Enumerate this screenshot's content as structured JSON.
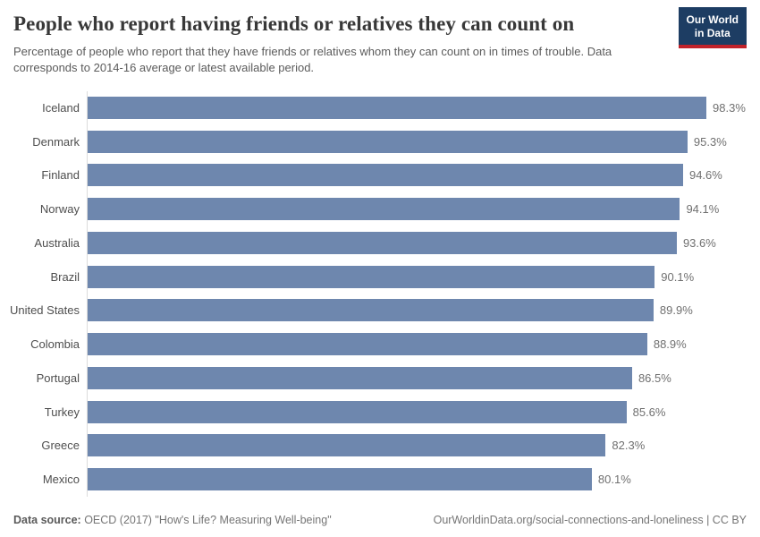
{
  "header": {
    "title": "People who report having friends or relatives they can count on",
    "subtitle": "Percentage of people who report that they have friends or relatives whom they can count on in times of trouble. Data corresponds to 2014-16 average or latest available period.",
    "logo": {
      "line1": "Our World",
      "line2": "in Data"
    }
  },
  "chart_data": {
    "type": "bar",
    "orientation": "horizontal",
    "categories": [
      "Iceland",
      "Denmark",
      "Finland",
      "Norway",
      "Australia",
      "Brazil",
      "United States",
      "Colombia",
      "Portugal",
      "Turkey",
      "Greece",
      "Mexico"
    ],
    "values": [
      98.3,
      95.3,
      94.6,
      94.1,
      93.6,
      90.1,
      89.9,
      88.9,
      86.5,
      85.6,
      82.3,
      80.1
    ],
    "value_suffix": "%",
    "xlim": [
      0,
      100
    ],
    "grid": false,
    "legend": false,
    "title": "People who report having friends or relatives they can count on",
    "xlabel": "",
    "ylabel": ""
  },
  "colors": {
    "bar": "#6e87ae",
    "axis_line": "#dcdcdc",
    "logo_bg": "#1d3d63",
    "logo_accent": "#c1222a"
  },
  "footer": {
    "source_label": "Data source:",
    "source_text": " OECD (2017) \"How's Life? Measuring Well-being\"",
    "credit": "OurWorldinData.org/social-connections-and-loneliness | CC BY"
  }
}
